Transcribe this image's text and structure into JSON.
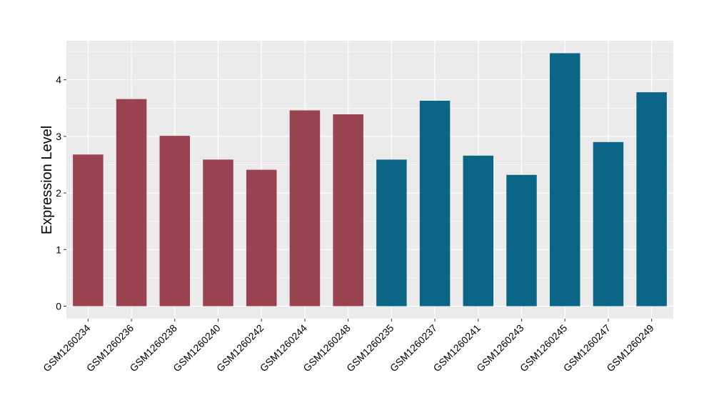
{
  "chart_data": {
    "type": "bar",
    "title": "",
    "xlabel": "",
    "ylabel": "Expression Level",
    "ylim": [
      0,
      4.7
    ],
    "yticks": [
      0,
      1,
      2,
      3,
      4
    ],
    "grid": true,
    "categories": [
      "GSM1260234",
      "GSM1260236",
      "GSM1260238",
      "GSM1260240",
      "GSM1260242",
      "GSM1260244",
      "GSM1260248",
      "GSM1260235",
      "GSM1260237",
      "GSM1260241",
      "GSM1260243",
      "GSM1260245",
      "GSM1260247",
      "GSM1260249"
    ],
    "values": [
      2.68,
      3.66,
      3.01,
      2.59,
      2.41,
      3.46,
      3.39,
      2.59,
      3.63,
      2.66,
      2.32,
      4.47,
      2.9,
      3.78
    ],
    "bar_colors": [
      "#9a4350",
      "#9a4350",
      "#9a4350",
      "#9a4350",
      "#9a4350",
      "#9a4350",
      "#9a4350",
      "#0b6586",
      "#0b6586",
      "#0b6586",
      "#0b6586",
      "#0b6586",
      "#0b6586",
      "#0b6586"
    ],
    "panel_background": "#ebebeb",
    "grid_color": "#ffffff"
  }
}
